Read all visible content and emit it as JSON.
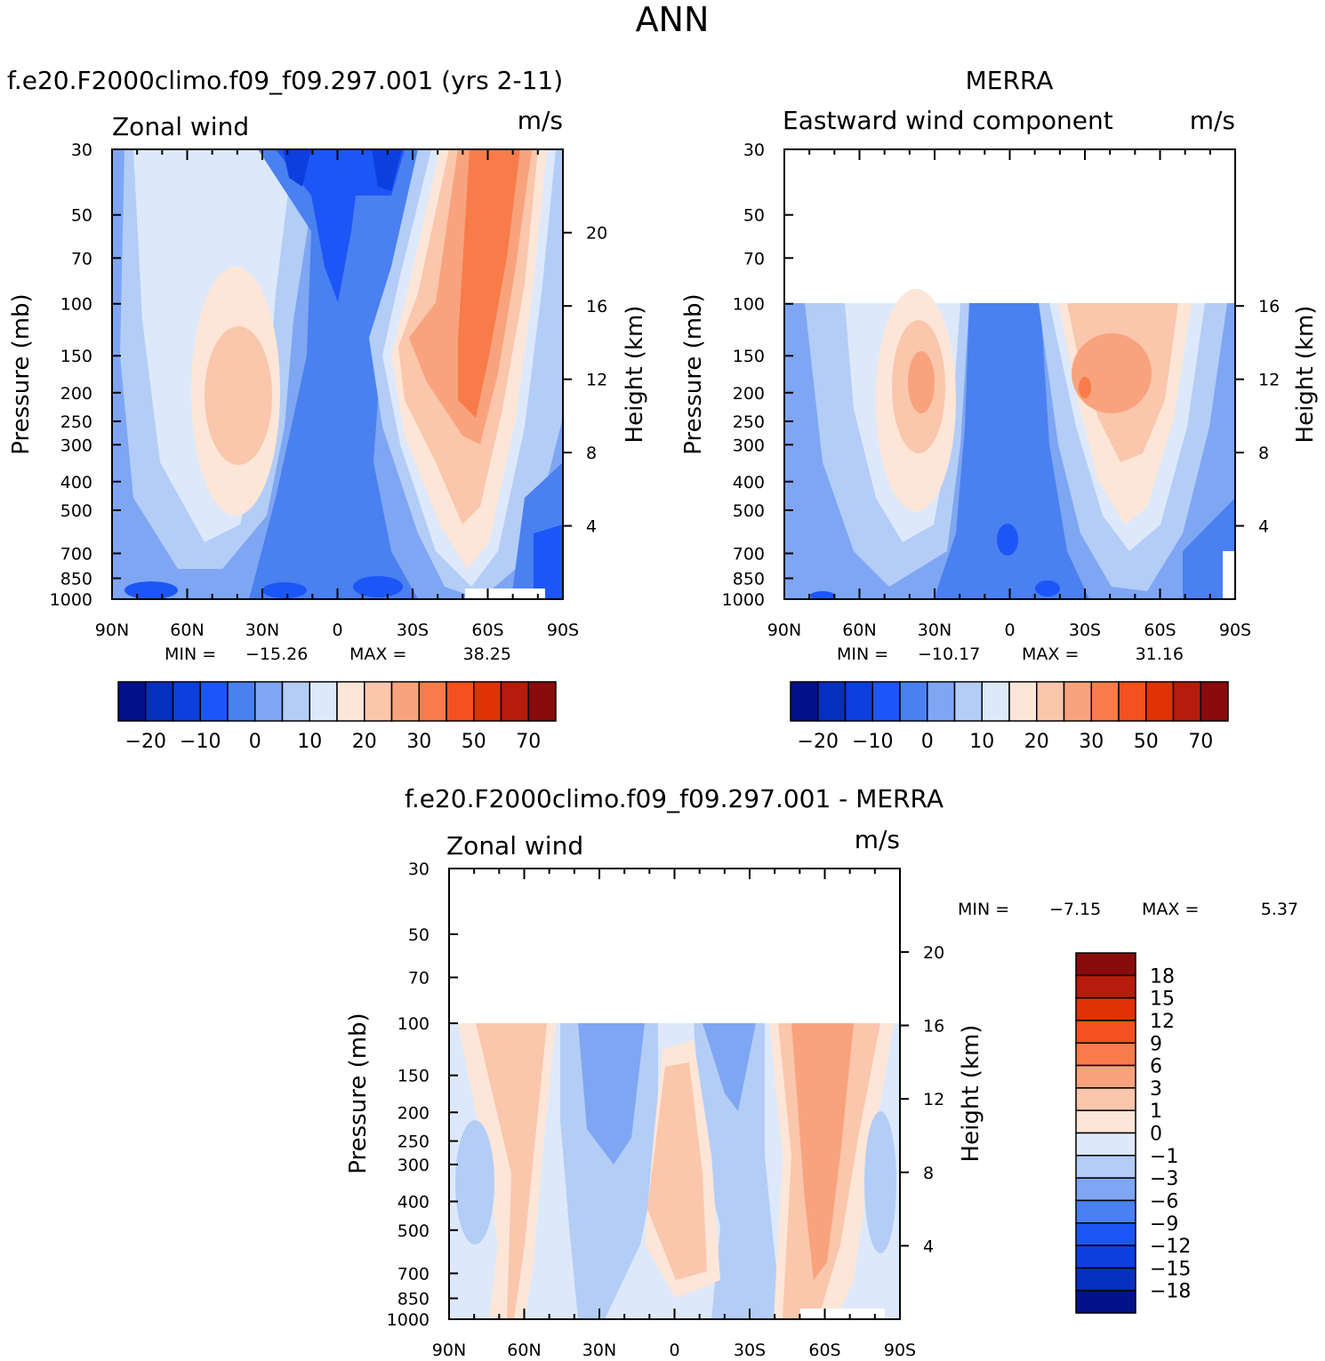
{
  "page_title": "ANN",
  "colors": {
    "levels": [
      "#00118a",
      "#0530be",
      "#0b40de",
      "#1c56f6",
      "#4a80ef",
      "#7ea6f2",
      "#b3cdf6",
      "#dde9fa",
      "#fde6d7",
      "#fac6ac",
      "#f8a37d",
      "#f77c4a",
      "#f4511e",
      "#df3305",
      "#b61c0b",
      "#8a0b0b"
    ],
    "frame": "#000000"
  },
  "chart_data": [
    {
      "type": "contour",
      "panel": "model",
      "title": "f.e20.F2000climo.f09_f09.297.001 (yrs 2-11)",
      "left_label": "Zonal wind",
      "right_label": "m/s",
      "ylabel": "Pressure (mb)",
      "ylabel_right": "Height (km)",
      "pressure_ticks": [
        "30",
        "50",
        "70",
        "100",
        "150",
        "200",
        "250",
        "300",
        "400",
        "500",
        "700",
        "850",
        "1000"
      ],
      "pressure_values": [
        30,
        50,
        70,
        100,
        150,
        200,
        250,
        300,
        400,
        500,
        700,
        850,
        1000
      ],
      "height_ticks": [
        "20",
        "16",
        "12",
        "8",
        "4"
      ],
      "height_values": [
        20,
        16,
        12,
        8,
        4
      ],
      "lat_ticks": [
        "90N",
        "60N",
        "30N",
        "0",
        "30S",
        "60S",
        "90S"
      ],
      "lat_values": [
        90,
        60,
        30,
        0,
        -30,
        -60,
        -90
      ],
      "stats": {
        "min_label": "MIN =",
        "min": "-15.26",
        "max_label": "MAX =",
        "max": "38.25"
      },
      "colorbar_labels": [
        "-20",
        "-10",
        "0",
        "10",
        "20",
        "30",
        "50",
        "70"
      ],
      "features": [
        {
          "lat": 45,
          "p": 200,
          "value": 20
        },
        {
          "lat": -48,
          "p": 150,
          "value": 33
        },
        {
          "lat": 0,
          "p": 200,
          "value": -8
        }
      ]
    },
    {
      "type": "contour",
      "panel": "obs",
      "title": "MERRA",
      "left_label": "Eastward wind component",
      "right_label": "m/s",
      "ylabel": "Pressure (mb)",
      "ylabel_right": "Height (km)",
      "pressure_ticks": [
        "30",
        "50",
        "70",
        "100",
        "150",
        "200",
        "250",
        "300",
        "400",
        "500",
        "700",
        "850",
        "1000"
      ],
      "height_ticks": [
        "16",
        "12",
        "8",
        "4"
      ],
      "lat_ticks": [
        "90N",
        "60N",
        "30N",
        "0",
        "30S",
        "60S",
        "90S"
      ],
      "data_top_mb": 100,
      "stats": {
        "min_label": "MIN =",
        "min": "-10.17",
        "max_label": "MAX =",
        "max": "31.16"
      },
      "colorbar_labels": [
        "-20",
        "-10",
        "0",
        "10",
        "20",
        "30",
        "50",
        "70"
      ],
      "features": [
        {
          "lat": 35,
          "p": 200,
          "value": 25
        },
        {
          "lat": -30,
          "p": 200,
          "value": 31
        },
        {
          "lat": 0,
          "p": 700,
          "value": -10
        }
      ]
    },
    {
      "type": "contour",
      "panel": "difference",
      "title": "f.e20.F2000climo.f09_f09.297.001 - MERRA",
      "left_label": "Zonal wind",
      "right_label": "m/s",
      "ylabel": "Pressure (mb)",
      "ylabel_right": "Height (km)",
      "pressure_ticks": [
        "30",
        "50",
        "70",
        "100",
        "150",
        "200",
        "250",
        "300",
        "400",
        "500",
        "700",
        "850",
        "1000"
      ],
      "height_ticks": [
        "20",
        "16",
        "12",
        "8",
        "4"
      ],
      "lat_ticks": [
        "90N",
        "60N",
        "30N",
        "0",
        "30S",
        "60S",
        "90S"
      ],
      "data_top_mb": 100,
      "stats": {
        "min_label": "MIN =",
        "min": "-7.15",
        "max_label": "MAX =",
        "max": "5.37"
      },
      "colorbar_labels": [
        "18",
        "15",
        "12",
        "9",
        "6",
        "3",
        "1",
        "0",
        "-1",
        "-3",
        "-6",
        "-9",
        "-12",
        "-15",
        "-18"
      ],
      "features": [
        {
          "lat": -55,
          "p": 300,
          "value": 5
        },
        {
          "lat": 0,
          "p": 400,
          "value": 3
        },
        {
          "lat": 30,
          "p": 200,
          "value": -6
        }
      ]
    }
  ]
}
